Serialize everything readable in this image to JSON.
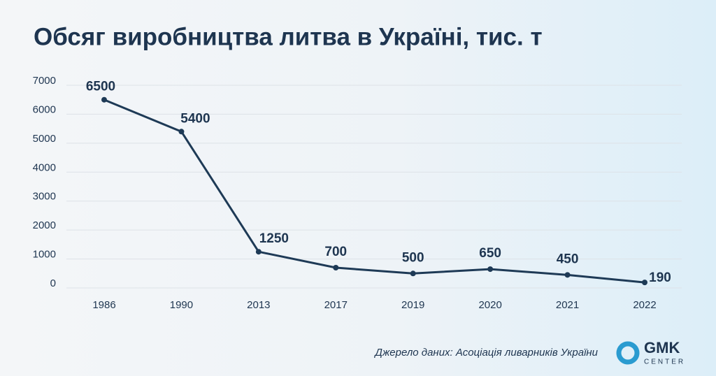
{
  "chart_data": {
    "type": "line",
    "title": "Обсяг виробництва литва в Україні, тис. т",
    "source": "Джерело даних: Асоціація ливарників України",
    "categories": [
      "1986",
      "1990",
      "2013",
      "2017",
      "2019",
      "2020",
      "2021",
      "2022"
    ],
    "series": [
      {
        "name": "Виробництво литва",
        "color": "#1e3a56",
        "values": [
          6500,
          5400,
          1250,
          700,
          500,
          650,
          450,
          190
        ]
      }
    ],
    "ylim": [
      0,
      7000
    ],
    "yticks": [
      0,
      1000,
      2000,
      3000,
      4000,
      5000,
      6000,
      7000
    ],
    "grid": true
  },
  "logo": {
    "name": "GMK",
    "subtitle": "CENTER"
  }
}
